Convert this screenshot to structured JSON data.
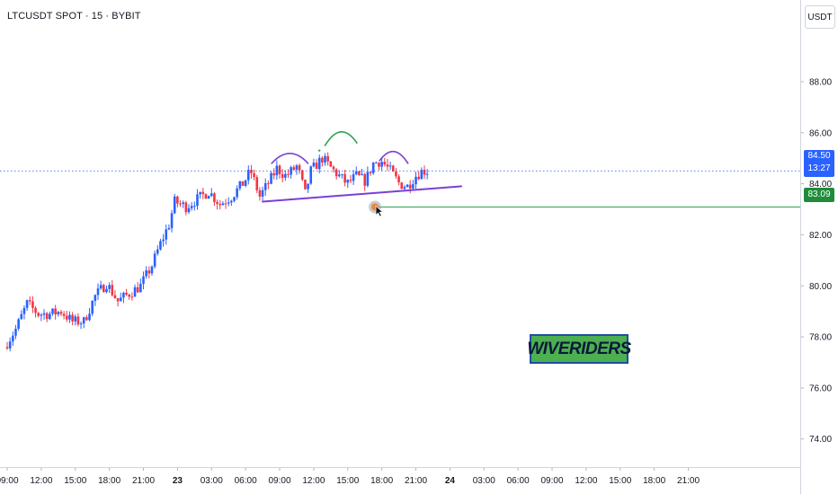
{
  "header": {
    "symbol_title": "LTCUSDT SPOT · 15 · BYBIT",
    "currency_unit": "USDT"
  },
  "price_labels": {
    "current_price": "84.50",
    "countdown": "13:27",
    "target_price": "83.09"
  },
  "watermark": {
    "text": "WIVERIDERS"
  },
  "colors": {
    "up_candle": "#2962ff",
    "down_candle": "#f23645",
    "trendline": "#7b3fd4",
    "head_arc": "#2ea44f",
    "target_line": "#2ea44f",
    "current_price_line": "#2962ff"
  },
  "chart_data": {
    "type": "candlestick",
    "title": "LTCUSDT SPOT · 15 · BYBIT",
    "ylabel": "USDT",
    "ylim": [
      72.9,
      91.2
    ],
    "yticks": [
      74,
      76,
      78,
      80,
      82,
      84,
      86,
      88
    ],
    "ytick_labels": [
      "74.00",
      "76.00",
      "78.00",
      "80.00",
      "82.00",
      "84.00",
      "86.00",
      "88.00"
    ],
    "xlim_hours": [
      9,
      78.7
    ],
    "xticks": [
      {
        "h": 9,
        "label": "09:00"
      },
      {
        "h": 12,
        "label": "12:00"
      },
      {
        "h": 15,
        "label": "15:00"
      },
      {
        "h": 18,
        "label": "18:00"
      },
      {
        "h": 21,
        "label": "21:00"
      },
      {
        "h": 24,
        "label": "23"
      },
      {
        "h": 27,
        "label": "03:00"
      },
      {
        "h": 30,
        "label": "06:00"
      },
      {
        "h": 33,
        "label": "09:00"
      },
      {
        "h": 36,
        "label": "12:00"
      },
      {
        "h": 39,
        "label": "15:00"
      },
      {
        "h": 42,
        "label": "18:00"
      },
      {
        "h": 45,
        "label": "21:00"
      },
      {
        "h": 48,
        "label": "24"
      },
      {
        "h": 51,
        "label": "03:00"
      },
      {
        "h": 54,
        "label": "06:00"
      },
      {
        "h": 57,
        "label": "09:00"
      },
      {
        "h": 60,
        "label": "12:00"
      },
      {
        "h": 63,
        "label": "15:00"
      },
      {
        "h": 66,
        "label": "18:00"
      },
      {
        "h": 69,
        "label": "21:00"
      }
    ],
    "price_path": [
      [
        9,
        77.6
      ],
      [
        10,
        78.3
      ],
      [
        11,
        79.3
      ],
      [
        12,
        78.9
      ],
      [
        13,
        78.9
      ],
      [
        14,
        79.0
      ],
      [
        15,
        78.6
      ],
      [
        16,
        78.6
      ],
      [
        17,
        79.6
      ],
      [
        18,
        80.1
      ],
      [
        19,
        79.4
      ],
      [
        20,
        79.7
      ],
      [
        21,
        80.0
      ],
      [
        22,
        80.8
      ],
      [
        22.7,
        81.6
      ],
      [
        23.5,
        82.4
      ],
      [
        24,
        83.3
      ],
      [
        25,
        83.1
      ],
      [
        26,
        83.4
      ],
      [
        27,
        83.7
      ],
      [
        28,
        83.2
      ],
      [
        29,
        83.5
      ],
      [
        30,
        84.0
      ],
      [
        30.7,
        84.5
      ],
      [
        31.5,
        83.5
      ],
      [
        32.5,
        84.2
      ],
      [
        33,
        84.6
      ],
      [
        33.8,
        84.3
      ],
      [
        34.8,
        84.7
      ],
      [
        35.5,
        83.6
      ],
      [
        36,
        84.5
      ],
      [
        37,
        85.0
      ],
      [
        37.8,
        84.6
      ],
      [
        38.5,
        84.3
      ],
      [
        39.2,
        84.0
      ],
      [
        40,
        84.3
      ],
      [
        40.8,
        84.1
      ],
      [
        41.5,
        84.8
      ],
      [
        42.2,
        84.9
      ],
      [
        43,
        84.5
      ],
      [
        43.8,
        84.0
      ],
      [
        44.5,
        83.9
      ],
      [
        45.2,
        84.3
      ],
      [
        45.8,
        84.5
      ],
      [
        46.2,
        84.5
      ]
    ],
    "annotations": {
      "neckline": [
        [
          31.5,
          83.3
        ],
        [
          49,
          83.9
        ]
      ],
      "left_shoulder_arc": [
        [
          32.3,
          84.8
        ],
        [
          35.5,
          84.8
        ]
      ],
      "head_arc": [
        [
          37,
          85.5
        ],
        [
          39.8,
          85.6
        ]
      ],
      "right_shoulder_arc": [
        [
          41.8,
          84.9
        ],
        [
          44.3,
          84.8
        ]
      ],
      "head_dot": [
        36.5,
        85.3
      ],
      "target_line_start": [
        41.4,
        83.09
      ],
      "target_marker": [
        41.4,
        83.09
      ],
      "current_price": 84.5,
      "target_price": 83.09
    }
  }
}
